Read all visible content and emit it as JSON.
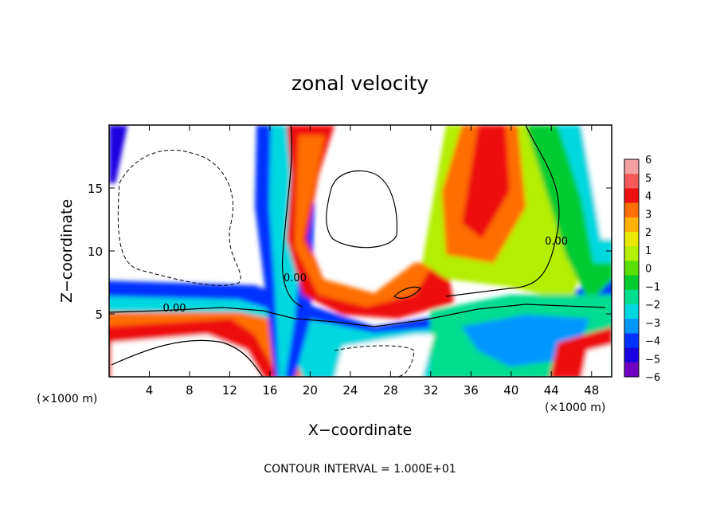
{
  "chart_data": {
    "type": "heatmap",
    "title": "zonal velocity",
    "xlabel": "X−coordinate",
    "ylabel": "Z−coordinate",
    "x_unit_left": "(×1000 m)",
    "x_unit_right": "(×1000 m)",
    "footer": "CONTOUR INTERVAL = 1.000E+01",
    "xlim": [
      0,
      50
    ],
    "ylim": [
      0,
      20
    ],
    "x_ticks": [
      4,
      8,
      12,
      16,
      20,
      24,
      28,
      32,
      36,
      40,
      44,
      48
    ],
    "x_tick_labels": [
      "4",
      "8",
      "12",
      "16",
      "20",
      "24",
      "28",
      "32",
      "36",
      "40",
      "44",
      "48"
    ],
    "y_ticks": [
      5,
      10,
      15
    ],
    "y_tick_labels": [
      "5",
      "10",
      "15"
    ],
    "contour_labels": [
      {
        "text": "0.00",
        "x": 6.5,
        "z": 5.2
      },
      {
        "text": "0.00",
        "x": 18.5,
        "z": 7.6
      },
      {
        "text": "0.00",
        "x": 44.5,
        "z": 10.5
      }
    ],
    "colorbar": {
      "min": -6,
      "max": 6,
      "tick_labels": [
        "6",
        "5",
        "4",
        "3",
        "2",
        "1",
        "0",
        "−1",
        "−2",
        "−3",
        "−4",
        "−5",
        "−6"
      ],
      "colors": [
        "#f3a0a0",
        "#f45a5a",
        "#ee1010",
        "#ff6e00",
        "#ffb000",
        "#e8e800",
        "#b4ee00",
        "#5ae000",
        "#00cc30",
        "#00dc90",
        "#00d8e0",
        "#0096ff",
        "#0032ff",
        "#1a00e0",
        "#7000c0"
      ]
    }
  }
}
